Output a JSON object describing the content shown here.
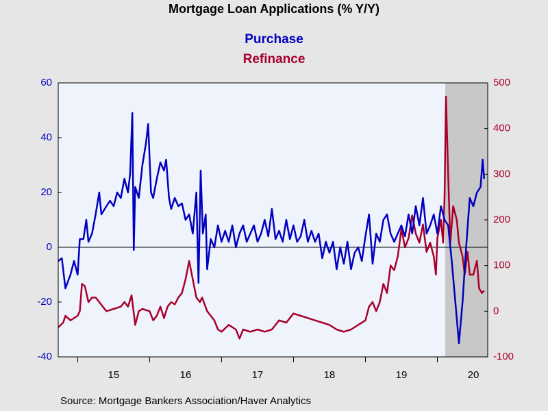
{
  "chart_data": {
    "type": "line",
    "title": "Mortgage Loan Applications (% Y/Y)",
    "source": "Source:  Mortgage Bankers Association/Haver Analytics",
    "xlim": [
      2014.73,
      2020.7
    ],
    "xticks": [
      {
        "value": 2015.5,
        "label": "15"
      },
      {
        "value": 2016.5,
        "label": "16"
      },
      {
        "value": 2017.5,
        "label": "17"
      },
      {
        "value": 2018.5,
        "label": "18"
      },
      {
        "value": 2019.5,
        "label": "19"
      },
      {
        "value": 2020.5,
        "label": "20"
      }
    ],
    "ylim": [
      -40,
      60
    ],
    "yticks": [
      -40,
      -20,
      0,
      20,
      40,
      60
    ],
    "y2lim": [
      -100,
      500
    ],
    "y2ticks": [
      -100,
      0,
      100,
      200,
      300,
      400,
      500
    ],
    "shaded_period": [
      2020.11,
      2020.7
    ],
    "series": [
      {
        "name": "Purchase",
        "color": "#0000c0",
        "axis": "y",
        "x": [
          2014.73,
          2014.78,
          2014.83,
          2014.9,
          2014.95,
          2015.0,
          2015.03,
          2015.08,
          2015.12,
          2015.15,
          2015.2,
          2015.25,
          2015.3,
          2015.33,
          2015.4,
          2015.45,
          2015.5,
          2015.55,
          2015.6,
          2015.65,
          2015.7,
          2015.73,
          2015.76,
          2015.78,
          2015.8,
          2015.85,
          2015.9,
          2015.95,
          2015.98,
          2016.02,
          2016.05,
          2016.1,
          2016.15,
          2016.2,
          2016.23,
          2016.27,
          2016.3,
          2016.35,
          2016.4,
          2016.45,
          2016.5,
          2016.55,
          2016.6,
          2016.65,
          2016.68,
          2016.71,
          2016.74,
          2016.78,
          2016.8,
          2016.85,
          2016.9,
          2016.95,
          2017.0,
          2017.05,
          2017.1,
          2017.15,
          2017.2,
          2017.25,
          2017.3,
          2017.35,
          2017.4,
          2017.45,
          2017.5,
          2017.55,
          2017.6,
          2017.65,
          2017.7,
          2017.75,
          2017.8,
          2017.85,
          2017.9,
          2017.95,
          2018.0,
          2018.05,
          2018.1,
          2018.15,
          2018.2,
          2018.25,
          2018.3,
          2018.35,
          2018.4,
          2018.45,
          2018.5,
          2018.55,
          2018.6,
          2018.65,
          2018.7,
          2018.75,
          2018.8,
          2018.85,
          2018.9,
          2018.95,
          2019.0,
          2019.05,
          2019.1,
          2019.15,
          2019.2,
          2019.25,
          2019.3,
          2019.35,
          2019.4,
          2019.45,
          2019.5,
          2019.55,
          2019.6,
          2019.65,
          2019.7,
          2019.75,
          2019.8,
          2019.85,
          2019.9,
          2019.95,
          2020.0,
          2020.05,
          2020.1,
          2020.15,
          2020.2,
          2020.25,
          2020.3,
          2020.35,
          2020.4,
          2020.45,
          2020.5,
          2020.55,
          2020.6,
          2020.63,
          2020.65
        ],
        "values": [
          -5,
          -4,
          -15,
          -10,
          -5,
          -10,
          3,
          3,
          10,
          2,
          5,
          12,
          20,
          12,
          15,
          17,
          15,
          20,
          18,
          25,
          20,
          27,
          49,
          -1,
          22,
          18,
          30,
          38,
          45,
          20,
          18,
          25,
          31,
          28,
          32,
          18,
          14,
          18,
          15,
          16,
          10,
          12,
          5,
          20,
          -13,
          28,
          5,
          12,
          -8,
          3,
          0,
          8,
          2,
          6,
          2,
          8,
          0,
          5,
          8,
          2,
          5,
          8,
          2,
          5,
          10,
          4,
          14,
          3,
          6,
          2,
          10,
          3,
          8,
          2,
          4,
          10,
          2,
          6,
          2,
          5,
          -4,
          2,
          -2,
          2,
          -8,
          0,
          -6,
          2,
          -8,
          -2,
          0,
          -5,
          4,
          12,
          -6,
          5,
          2,
          10,
          12,
          5,
          2,
          5,
          8,
          4,
          12,
          5,
          15,
          8,
          18,
          5,
          8,
          12,
          5,
          15,
          10,
          8,
          -5,
          -20,
          -35,
          -20,
          0,
          18,
          15,
          20,
          22,
          32,
          25
        ]
      },
      {
        "name": "Refinance",
        "color": "#a8002c",
        "axis": "y2",
        "x": [
          2014.73,
          2014.8,
          2014.83,
          2014.9,
          2015.0,
          2015.03,
          2015.06,
          2015.1,
          2015.15,
          2015.2,
          2015.25,
          2015.3,
          2015.35,
          2015.4,
          2015.5,
          2015.6,
          2015.65,
          2015.7,
          2015.75,
          2015.8,
          2015.85,
          2015.9,
          2016.0,
          2016.05,
          2016.1,
          2016.15,
          2016.2,
          2016.25,
          2016.3,
          2016.35,
          2016.4,
          2016.45,
          2016.5,
          2016.55,
          2016.6,
          2016.65,
          2016.7,
          2016.73,
          2016.8,
          2016.85,
          2016.9,
          2016.95,
          2017.0,
          2017.1,
          2017.2,
          2017.25,
          2017.3,
          2017.4,
          2017.5,
          2017.6,
          2017.7,
          2017.8,
          2017.9,
          2018.0,
          2018.1,
          2018.2,
          2018.3,
          2018.4,
          2018.5,
          2018.6,
          2018.7,
          2018.8,
          2018.9,
          2019.0,
          2019.05,
          2019.1,
          2019.15,
          2019.2,
          2019.25,
          2019.3,
          2019.35,
          2019.4,
          2019.45,
          2019.5,
          2019.55,
          2019.6,
          2019.65,
          2019.7,
          2019.75,
          2019.8,
          2019.85,
          2019.9,
          2019.95,
          2019.98,
          2020.0,
          2020.05,
          2020.08,
          2020.1,
          2020.12,
          2020.15,
          2020.18,
          2020.22,
          2020.27,
          2020.3,
          2020.35,
          2020.38,
          2020.42,
          2020.45,
          2020.5,
          2020.55,
          2020.58,
          2020.62,
          2020.65
        ],
        "values": [
          -35,
          -25,
          -10,
          -20,
          -10,
          0,
          60,
          55,
          20,
          30,
          30,
          20,
          10,
          0,
          5,
          10,
          20,
          10,
          35,
          -30,
          0,
          5,
          0,
          -20,
          -10,
          10,
          -15,
          10,
          20,
          15,
          30,
          40,
          70,
          110,
          70,
          30,
          20,
          30,
          0,
          -10,
          -20,
          -40,
          -45,
          -30,
          -40,
          -60,
          -40,
          -45,
          -40,
          -45,
          -40,
          -20,
          -25,
          -5,
          -10,
          -15,
          -20,
          -25,
          -30,
          -40,
          -45,
          -40,
          -30,
          -20,
          10,
          20,
          0,
          20,
          60,
          40,
          100,
          90,
          120,
          180,
          140,
          160,
          210,
          170,
          150,
          190,
          130,
          150,
          120,
          80,
          160,
          200,
          150,
          250,
          470,
          300,
          150,
          230,
          200,
          150,
          120,
          80,
          130,
          80,
          80,
          110,
          50,
          40,
          45
        ]
      }
    ]
  }
}
